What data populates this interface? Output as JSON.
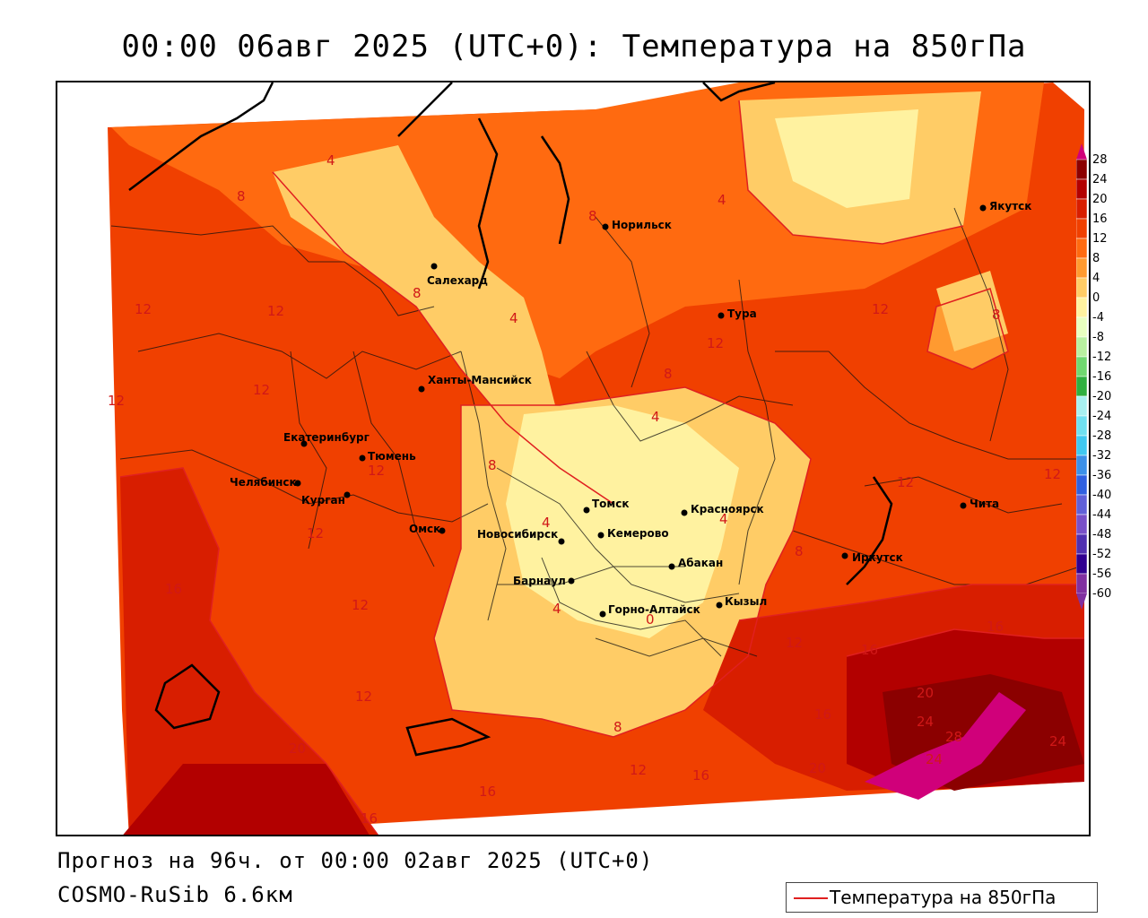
{
  "title": "00:00 06авг 2025 (UTC+0): Температура на 850гПа",
  "footer": {
    "forecast": "Прогноз на 96ч. от 00:00 02авг 2025 (UTC+0)",
    "model": "COSMO-RuSib 6.6км"
  },
  "legend": {
    "label": "Температура на 850гПа",
    "line_color": "#e02020"
  },
  "colorbar": {
    "ticks": [
      "28",
      "24",
      "20",
      "16",
      "12",
      "8",
      "4",
      "0",
      "-4",
      "-8",
      "-12",
      "-16",
      "-20",
      "-24",
      "-28",
      "-32",
      "-36",
      "-40",
      "-44",
      "-48",
      "-52",
      "-56",
      "-60"
    ],
    "colors": [
      "#d0007a",
      "#8b0000",
      "#b20000",
      "#d81e00",
      "#f04000",
      "#ff6a10",
      "#ff9a30",
      "#ffcc66",
      "#fff2a0",
      "#e8ffc0",
      "#b8f0a0",
      "#70d870",
      "#30b040",
      "#a8f0f0",
      "#70e0f0",
      "#40c8f0",
      "#3c90e8",
      "#3060e0",
      "#6060d8",
      "#7850c8",
      "#5030b0",
      "#300090",
      "#8030a0"
    ]
  },
  "cities": [
    {
      "name": "Салехард"
    },
    {
      "name": "Норильск"
    },
    {
      "name": "Якутск"
    },
    {
      "name": "Тура"
    },
    {
      "name": "Ханты-Мансийск"
    },
    {
      "name": "Екатеринбург"
    },
    {
      "name": "Тюмень"
    },
    {
      "name": "Челябинск"
    },
    {
      "name": "Курган"
    },
    {
      "name": "Омск"
    },
    {
      "name": "Новосибирск"
    },
    {
      "name": "Томск"
    },
    {
      "name": "Кемерово"
    },
    {
      "name": "Красноярск"
    },
    {
      "name": "Абакан"
    },
    {
      "name": "Барнаул"
    },
    {
      "name": "Горно-Алтайск"
    },
    {
      "name": "Кызыл"
    },
    {
      "name": "Иркутск"
    },
    {
      "name": "Чита"
    }
  ],
  "isotherm_labels": [
    "28",
    "24",
    "24",
    "24",
    "20",
    "20",
    "20",
    "16",
    "16",
    "16",
    "16",
    "16",
    "16",
    "16",
    "12",
    "12",
    "12",
    "12",
    "12",
    "12",
    "12",
    "12",
    "12",
    "12",
    "12",
    "12",
    "12",
    "12",
    "8",
    "8",
    "8",
    "8",
    "8",
    "8",
    "8",
    "8",
    "4",
    "4",
    "4",
    "4",
    "4",
    "4",
    "4",
    "0"
  ]
}
